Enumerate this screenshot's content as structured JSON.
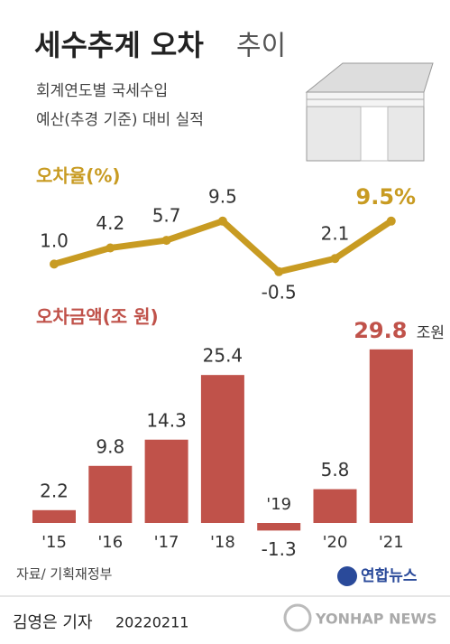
{
  "header": {
    "title": "세수추계 오차",
    "title_light": "추이",
    "subtitle": [
      "회계연도별 국세수입",
      "예산(추경 기준) 대비 실적"
    ]
  },
  "chart_data": [
    {
      "type": "line",
      "title": "오차율(%)",
      "color": "#c89b22",
      "values": [
        1.0,
        4.2,
        5.7,
        9.5,
        -0.5,
        2.1,
        9.5
      ],
      "value_labels": [
        "1.0",
        "4.2",
        "5.7",
        "9.5",
        "-0.5",
        "2.1",
        "9.5%"
      ]
    },
    {
      "type": "bar",
      "title": "오차금액(조 원)",
      "color": "#c0524a",
      "categories": [
        "'15",
        "'16",
        "'17",
        "'18",
        "'19",
        "'20",
        "'21"
      ],
      "values": [
        2.2,
        9.8,
        14.3,
        25.4,
        -1.3,
        5.8,
        29.8
      ],
      "unit_label": "조원"
    }
  ],
  "footer": {
    "source": "자료/ 기획재정부",
    "logo": "연합뉴스",
    "credit": "김영은 기자",
    "date": "20220211",
    "watermark": "YONHAP NEWS"
  }
}
